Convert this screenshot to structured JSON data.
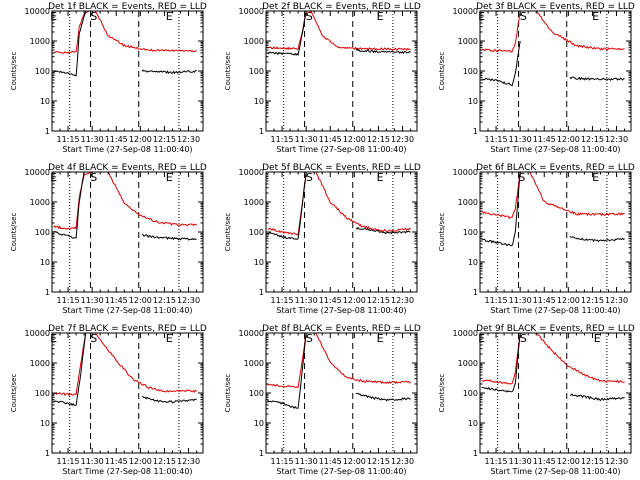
{
  "colors": {
    "events": "#000000",
    "lld": "#dd0000",
    "background": "#ffffff"
  },
  "chart_data": [
    {
      "type": "line",
      "title": "Det 1f BLACK = Events, RED = LLD",
      "xlabel": "Start Time (27-Sep-08 11:00:40)",
      "ylabel": "Counts/sec",
      "xticks": [
        "11:15",
        "11:30",
        "11:45",
        "12:00",
        "12:15",
        "12:30"
      ],
      "yticks": [
        "1",
        "10",
        "100",
        "1000",
        "10000"
      ],
      "ylim": [
        1,
        10000
      ],
      "yscale": "log",
      "flags": [
        {
          "label": "E",
          "x": "11:06"
        },
        {
          "label": "S",
          "x": "11:31"
        },
        {
          "label": "E",
          "x": "12:18"
        }
      ],
      "series": [
        {
          "name": "LLD",
          "x": [
            "11:06",
            "11:15",
            "11:20",
            "11:22",
            "11:25",
            "11:28",
            "11:32",
            "11:40",
            "11:50",
            "12:05",
            "12:20",
            "12:35"
          ],
          "y": [
            420,
            420,
            430,
            3000,
            8000,
            10000,
            10000,
            1500,
            700,
            500,
            480,
            470
          ]
        },
        {
          "name": "Events",
          "x": [
            "11:06",
            "11:15",
            "11:20",
            "11:22",
            "11:26"
          ],
          "y": [
            100,
            85,
            70,
            1800,
            10000
          ]
        },
        {
          "name": "Events",
          "x": [
            "12:01",
            "12:10",
            "12:20",
            "12:35"
          ],
          "y": [
            100,
            95,
            90,
            100
          ]
        }
      ]
    },
    {
      "type": "line",
      "title": "Det 2f BLACK = Events, RED = LLD",
      "xlabel": "Start Time (27-Sep-08 11:00:40)",
      "ylabel": "Counts/sec",
      "xticks": [
        "11:15",
        "11:30",
        "11:45",
        "12:00",
        "12:15",
        "12:30"
      ],
      "yticks": [
        "1",
        "10",
        "100",
        "1000",
        "10000"
      ],
      "ylim": [
        1,
        10000
      ],
      "yscale": "log",
      "flags": [
        {
          "label": "S",
          "x": "11:32"
        },
        {
          "label": "E",
          "x": "12:16"
        }
      ],
      "series": [
        {
          "name": "LLD",
          "x": [
            "11:06",
            "11:15",
            "11:25",
            "11:27",
            "11:30",
            "11:33",
            "11:40",
            "11:50",
            "12:05",
            "12:20",
            "12:35"
          ],
          "y": [
            600,
            580,
            550,
            1500,
            8000,
            10000,
            1500,
            600,
            550,
            540,
            520
          ]
        },
        {
          "name": "Events",
          "x": [
            "11:06",
            "11:15",
            "11:25",
            "11:27",
            "11:30"
          ],
          "y": [
            400,
            380,
            350,
            1200,
            10000
          ]
        },
        {
          "name": "Events",
          "x": [
            "12:01",
            "12:10",
            "12:20",
            "12:35"
          ],
          "y": [
            500,
            450,
            430,
            420
          ]
        }
      ]
    },
    {
      "type": "line",
      "title": "Det 3f BLACK = Events, RED = LLD",
      "xlabel": "Start Time (27-Sep-08 11:00:40)",
      "ylabel": "Counts/sec",
      "xticks": [
        "11:15",
        "11:30",
        "11:45",
        "12:00",
        "12:15",
        "12:30"
      ],
      "yticks": [
        "1",
        "10",
        "100",
        "1000",
        "10000"
      ],
      "ylim": [
        1,
        10000
      ],
      "yscale": "log",
      "flags": [
        {
          "label": "E",
          "x": "11:06"
        },
        {
          "label": "S",
          "x": "11:32"
        },
        {
          "label": "E",
          "x": "12:17"
        }
      ],
      "series": [
        {
          "name": "LLD",
          "x": [
            "11:06",
            "11:15",
            "11:25",
            "11:27",
            "11:30",
            "11:40",
            "11:50",
            "12:05",
            "12:20",
            "12:35"
          ],
          "y": [
            500,
            480,
            450,
            800,
            10000,
            10000,
            2000,
            700,
            550,
            560
          ]
        },
        {
          "name": "Events",
          "x": [
            "11:06",
            "11:15",
            "11:25",
            "11:27",
            "11:30"
          ],
          "y": [
            55,
            48,
            35,
            80,
            1000
          ]
        },
        {
          "name": "Events",
          "x": [
            "12:01",
            "12:10",
            "12:20",
            "12:35"
          ],
          "y": [
            60,
            55,
            52,
            55
          ]
        }
      ]
    },
    {
      "type": "line",
      "title": "Det 4f BLACK = Events, RED = LLD",
      "xlabel": "Start Time (27-Sep-08 11:00:40)",
      "ylabel": "Counts/sec",
      "xticks": [
        "11:15",
        "11:30",
        "11:45",
        "12:00",
        "12:15",
        "12:30"
      ],
      "yticks": [
        "1",
        "10",
        "100",
        "1000",
        "10000"
      ],
      "ylim": [
        1,
        10000
      ],
      "yscale": "log",
      "flags": [
        {
          "label": "E",
          "x": "11:06"
        },
        {
          "label": "S",
          "x": "11:31"
        },
        {
          "label": "E",
          "x": "12:18"
        }
      ],
      "series": [
        {
          "name": "LLD",
          "x": [
            "11:06",
            "11:15",
            "11:20",
            "11:22",
            "11:25",
            "11:30",
            "11:40",
            "11:50",
            "12:00",
            "12:10",
            "12:20",
            "12:35"
          ],
          "y": [
            150,
            130,
            140,
            1500,
            8000,
            10000,
            10000,
            900,
            350,
            220,
            180,
            170
          ]
        },
        {
          "name": "Events",
          "x": [
            "11:06",
            "11:15",
            "11:20",
            "11:22",
            "11:25"
          ],
          "y": [
            100,
            75,
            60,
            1100,
            10000
          ]
        },
        {
          "name": "Events",
          "x": [
            "12:01",
            "12:10",
            "12:20",
            "12:35"
          ],
          "y": [
            80,
            65,
            60,
            58
          ]
        }
      ]
    },
    {
      "type": "line",
      "title": "Det 5f BLACK = Events, RED = LLD",
      "xlabel": "Start Time (27-Sep-08 11:00:40)",
      "ylabel": "Counts/sec",
      "xticks": [
        "11:15",
        "11:30",
        "11:45",
        "12:00",
        "12:15",
        "12:30"
      ],
      "yticks": [
        "1",
        "10",
        "100",
        "1000",
        "10000"
      ],
      "ylim": [
        1,
        10000
      ],
      "yscale": "log",
      "flags": [
        {
          "label": "S",
          "x": "11:32"
        },
        {
          "label": "E",
          "x": "12:16"
        }
      ],
      "series": [
        {
          "name": "LLD",
          "x": [
            "11:06",
            "11:15",
            "11:25",
            "11:27",
            "11:30",
            "11:36",
            "11:45",
            "11:55",
            "12:05",
            "12:20",
            "12:35"
          ],
          "y": [
            130,
            100,
            85,
            500,
            10000,
            10000,
            1000,
            300,
            150,
            110,
            125
          ]
        },
        {
          "name": "Events",
          "x": [
            "11:06",
            "11:15",
            "11:25",
            "11:27",
            "11:30"
          ],
          "y": [
            95,
            70,
            55,
            400,
            10000
          ]
        },
        {
          "name": "Events",
          "x": [
            "12:01",
            "12:10",
            "12:20",
            "12:35"
          ],
          "y": [
            140,
            110,
            95,
            100
          ]
        }
      ]
    },
    {
      "type": "line",
      "title": "Det 6f BLACK = Events, RED = LLD",
      "xlabel": "Start Time (27-Sep-08 11:00:40)",
      "ylabel": "Counts/sec",
      "xticks": [
        "11:15",
        "11:30",
        "11:45",
        "12:00",
        "12:15",
        "12:30"
      ],
      "yticks": [
        "1",
        "10",
        "100",
        "1000",
        "10000"
      ],
      "ylim": [
        1,
        10000
      ],
      "yscale": "log",
      "flags": [
        {
          "label": "S",
          "x": "11:31"
        },
        {
          "label": "E",
          "x": "12:17"
        }
      ],
      "series": [
        {
          "name": "LLD",
          "x": [
            "11:06",
            "11:15",
            "11:25",
            "11:27",
            "11:30",
            "11:36",
            "11:45",
            "11:55",
            "12:05",
            "12:20",
            "12:35"
          ],
          "y": [
            450,
            380,
            300,
            600,
            10000,
            10000,
            1000,
            650,
            400,
            380,
            400
          ]
        },
        {
          "name": "Events",
          "x": [
            "11:06",
            "11:15",
            "11:25",
            "11:27",
            "11:30"
          ],
          "y": [
            55,
            45,
            35,
            100,
            10000
          ]
        },
        {
          "name": "Events",
          "x": [
            "12:01",
            "12:10",
            "12:20",
            "12:35"
          ],
          "y": [
            70,
            55,
            50,
            60
          ]
        }
      ]
    },
    {
      "type": "line",
      "title": "Det 7f BLACK = Events, RED = LLD",
      "xlabel": "Start Time (27-Sep-08 11:00:40)",
      "ylabel": "Counts/sec",
      "xticks": [
        "11:15",
        "11:30",
        "11:45",
        "12:00",
        "12:15",
        "12:30"
      ],
      "yticks": [
        "1",
        "10",
        "100",
        "1000",
        "10000"
      ],
      "ylim": [
        1,
        10000
      ],
      "yscale": "log",
      "flags": [
        {
          "label": "E",
          "x": "11:06"
        },
        {
          "label": "S",
          "x": "11:31"
        },
        {
          "label": "E",
          "x": "12:18"
        }
      ],
      "series": [
        {
          "name": "LLD",
          "x": [
            "11:06",
            "11:15",
            "11:20",
            "11:23",
            "11:26",
            "11:32",
            "11:45",
            "11:55",
            "12:05",
            "12:15",
            "12:25",
            "12:35"
          ],
          "y": [
            100,
            90,
            90,
            1000,
            10000,
            10000,
            1200,
            300,
            150,
            110,
            120,
            115
          ]
        },
        {
          "name": "Events",
          "x": [
            "11:06",
            "11:15",
            "11:20",
            "11:23",
            "11:26"
          ],
          "y": [
            55,
            45,
            40,
            500,
            10000
          ]
        },
        {
          "name": "Events",
          "x": [
            "12:01",
            "12:10",
            "12:20",
            "12:35"
          ],
          "y": [
            75,
            55,
            50,
            60
          ]
        }
      ]
    },
    {
      "type": "line",
      "title": "Det 8f BLACK = Events, RED = LLD",
      "xlabel": "Start Time (27-Sep-08 11:00:40)",
      "ylabel": "Counts/sec",
      "xticks": [
        "11:15",
        "11:30",
        "11:45",
        "12:00",
        "12:15",
        "12:30"
      ],
      "yticks": [
        "1",
        "10",
        "100",
        "1000",
        "10000"
      ],
      "ylim": [
        1,
        10000
      ],
      "yscale": "log",
      "flags": [
        {
          "label": "S",
          "x": "11:32"
        },
        {
          "label": "E",
          "x": "12:16"
        }
      ],
      "series": [
        {
          "name": "LLD",
          "x": [
            "11:06",
            "11:15",
            "11:25",
            "11:27",
            "11:30",
            "11:36",
            "11:45",
            "11:55",
            "12:05",
            "12:20",
            "12:35"
          ],
          "y": [
            190,
            170,
            150,
            700,
            10000,
            10000,
            1000,
            350,
            250,
            220,
            230
          ]
        },
        {
          "name": "Events",
          "x": [
            "11:06",
            "11:15",
            "11:25",
            "11:27",
            "11:30"
          ],
          "y": [
            55,
            45,
            30,
            300,
            10000
          ]
        },
        {
          "name": "Events",
          "x": [
            "12:01",
            "12:10",
            "12:20",
            "12:35"
          ],
          "y": [
            100,
            70,
            60,
            65
          ]
        }
      ]
    },
    {
      "type": "line",
      "title": "Det 9f BLACK = Events, RED = LLD",
      "xlabel": "Start Time (27-Sep-08 11:00:40)",
      "ylabel": "Counts/sec",
      "xticks": [
        "11:15",
        "11:30",
        "11:45",
        "12:00",
        "12:15",
        "12:30"
      ],
      "yticks": [
        "1",
        "10",
        "100",
        "1000",
        "10000"
      ],
      "ylim": [
        1,
        10000
      ],
      "yscale": "log",
      "flags": [
        {
          "label": "E",
          "x": "11:06"
        },
        {
          "label": "S",
          "x": "11:32"
        },
        {
          "label": "E",
          "x": "12:18"
        }
      ],
      "series": [
        {
          "name": "LLD",
          "x": [
            "11:06",
            "11:15",
            "11:25",
            "11:27",
            "11:30",
            "11:40",
            "11:50",
            "12:00",
            "12:10",
            "12:20",
            "12:35"
          ],
          "y": [
            270,
            240,
            200,
            500,
            10000,
            10000,
            2500,
            800,
            400,
            250,
            240
          ]
        },
        {
          "name": "Events",
          "x": [
            "11:06",
            "11:15",
            "11:25",
            "11:27",
            "11:30"
          ],
          "y": [
            150,
            130,
            110,
            200,
            10000
          ]
        },
        {
          "name": "Events",
          "x": [
            "12:01",
            "12:10",
            "12:20",
            "12:35"
          ],
          "y": [
            90,
            75,
            60,
            70
          ]
        }
      ]
    }
  ]
}
